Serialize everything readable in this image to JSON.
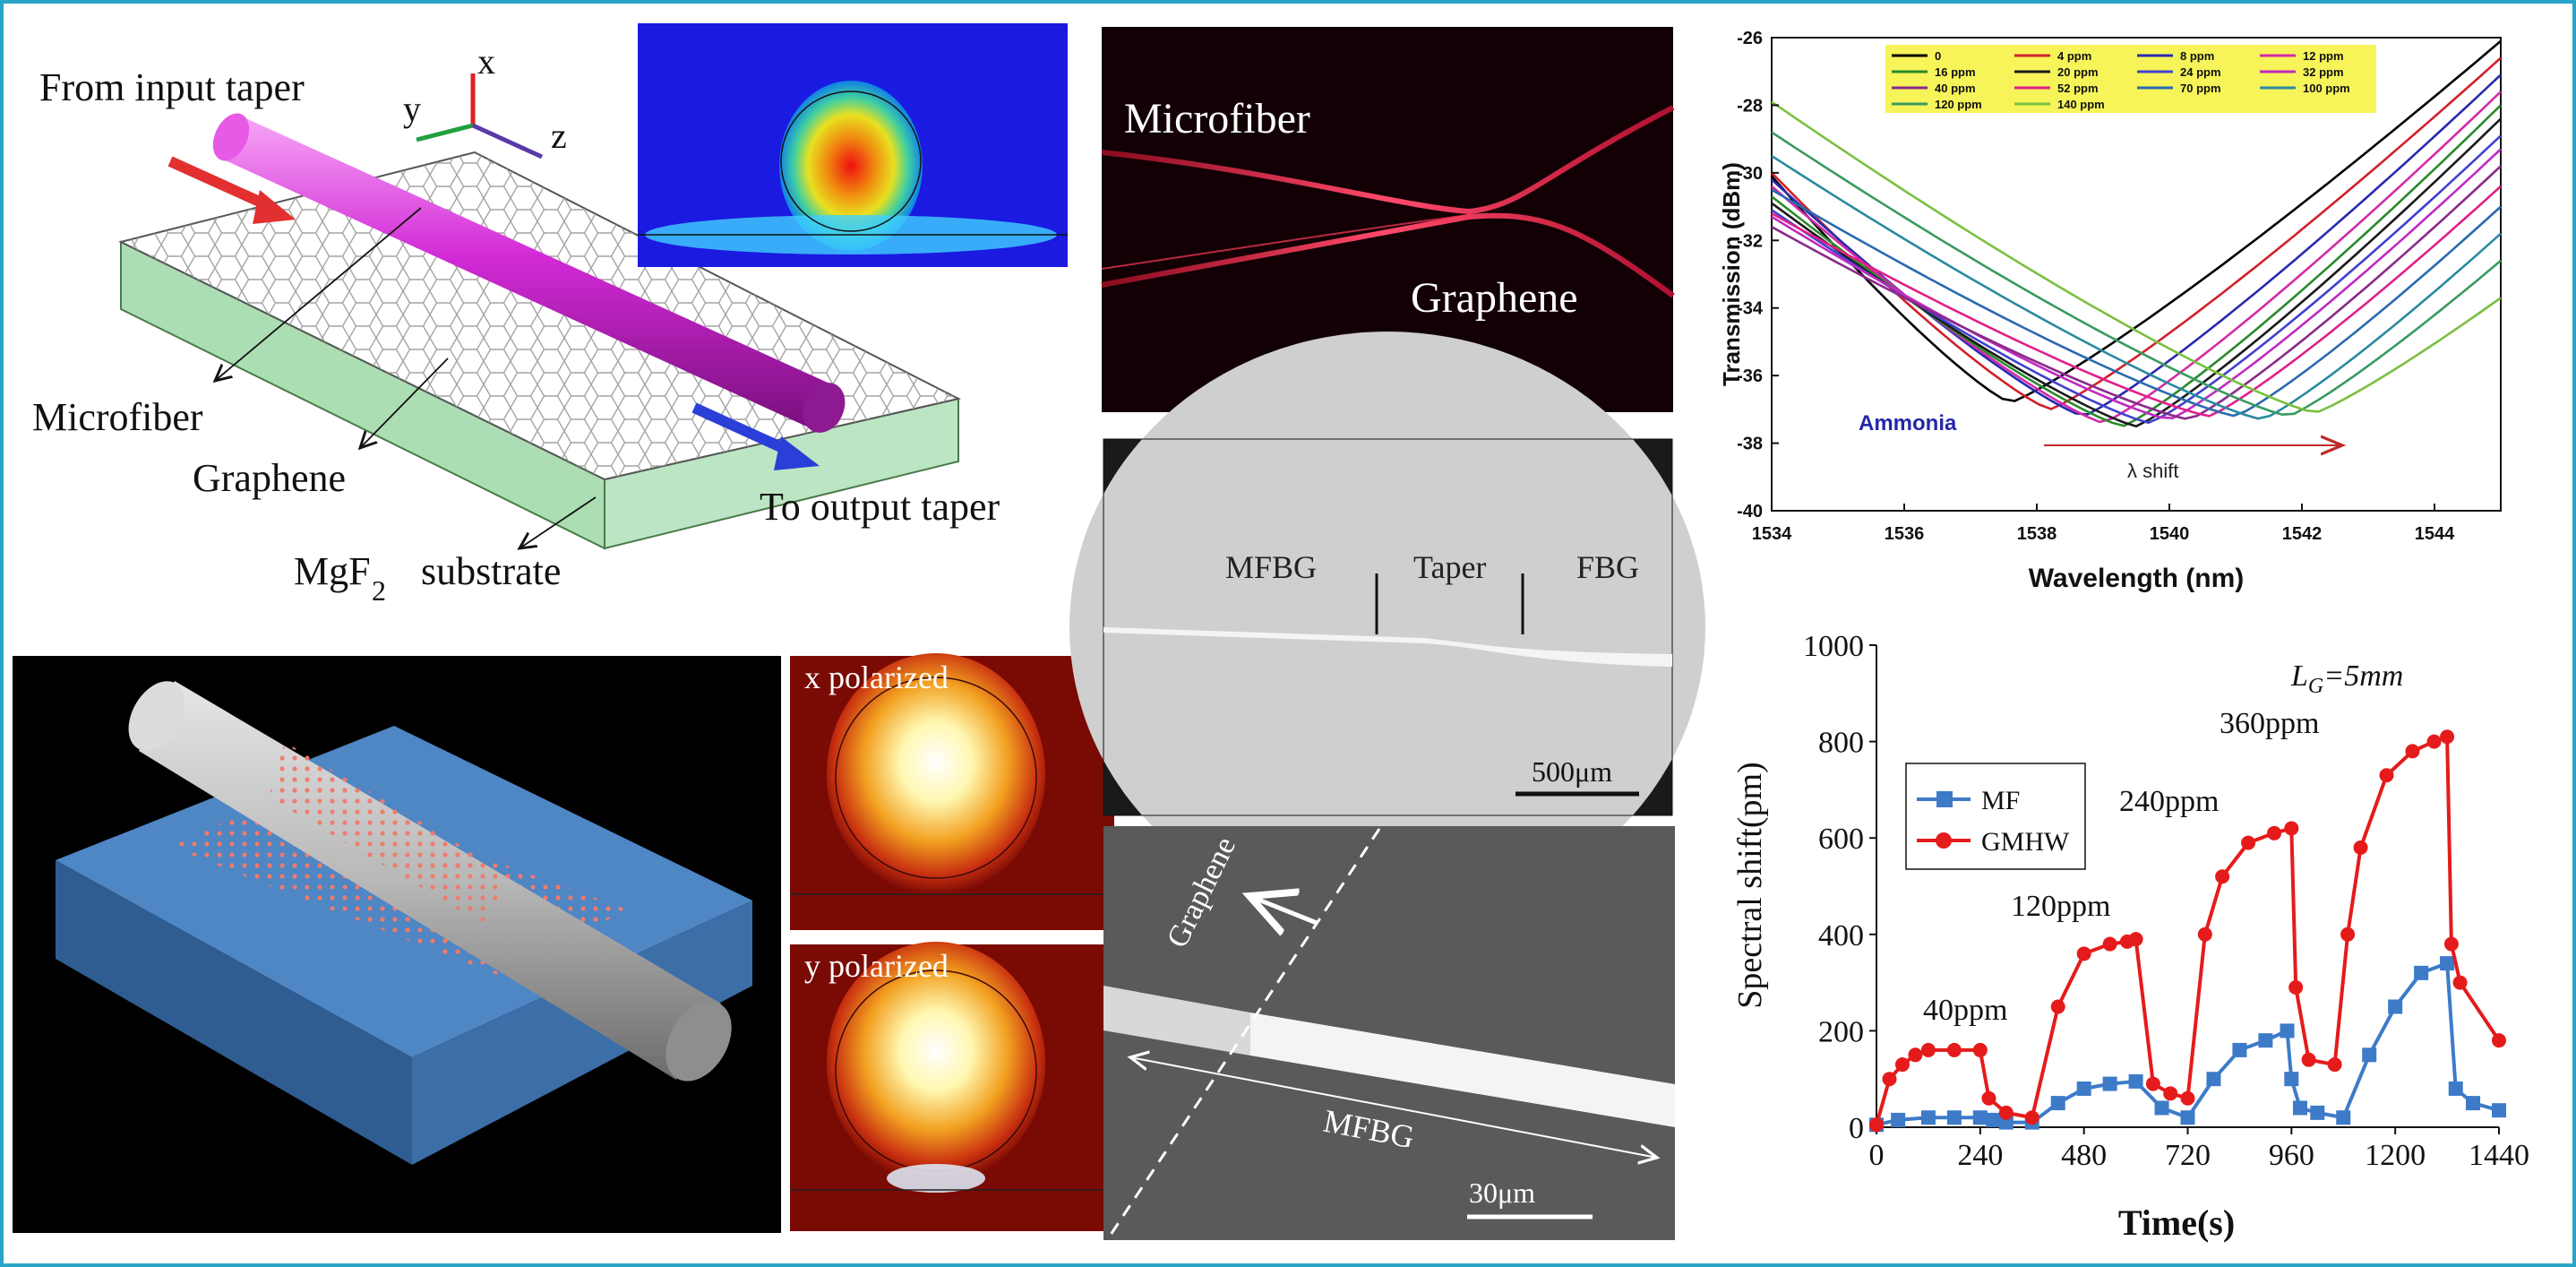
{
  "colors": {
    "frame": "#2aa5c9",
    "fiber": "#d22ad6",
    "substrate": "#8fd39a",
    "arrow_in": "#e23030",
    "arrow_out": "#2a3fd8",
    "red_series": "#e51b1b",
    "blue_series": "#3d7bc9",
    "ammonia_label": "#2626a8"
  },
  "panel_a": {
    "label_input": "From input taper",
    "label_microfiber": "Microfiber",
    "label_graphene": "Graphene",
    "label_substrate_mg": "MgF",
    "label_substrate_sub": "2",
    "label_substrate_word": "substrate",
    "label_output": "To output taper",
    "axis_x": "x",
    "axis_y": "y",
    "axis_z": "z"
  },
  "panel_b": {
    "label_x": "x polarized",
    "label_y": "y polarized"
  },
  "panel_c": {
    "label_microfiber": "Microfiber",
    "label_graphene": "Graphene"
  },
  "panel_d": {
    "label_mfbg": "MFBG",
    "label_taper": "Taper",
    "label_fbg": "FBG",
    "scale": "500μm"
  },
  "panel_e": {
    "label_graphene": "Graphene",
    "label_mfbg": "MFBG",
    "scale": "30μm"
  },
  "chart_data": [
    {
      "type": "line",
      "title": "",
      "xlabel": "Wavelength (nm)",
      "ylabel": "Transmission (dBm)",
      "xlim": [
        1534,
        1545
      ],
      "ylim": [
        -40,
        -26
      ],
      "xticks": [
        "1534",
        "1536",
        "1538",
        "1540",
        "1542",
        "1544"
      ],
      "yticks": [
        "-26",
        "-28",
        "-30",
        "-32",
        "-34",
        "-36",
        "-38",
        "-40"
      ],
      "annotation_species": "Ammonia",
      "annotation_shift": "λ  shift",
      "series": [
        {
          "name": "0",
          "color": "#000000",
          "min_x": 1537.6,
          "min_y": -36.8,
          "start_y": -30.1,
          "end_y": -26.1
        },
        {
          "name": "4 ppm",
          "color": "#d2202a",
          "min_x": 1538.2,
          "min_y": -37.0,
          "start_y": -30.0,
          "end_y": -26.6
        },
        {
          "name": "8 ppm",
          "color": "#2a2ab0",
          "min_x": 1538.7,
          "min_y": -37.2,
          "start_y": -30.2,
          "end_y": -27.1
        },
        {
          "name": "12 ppm",
          "color": "#d42aa6",
          "min_x": 1539.0,
          "min_y": -37.4,
          "start_y": -30.4,
          "end_y": -27.6
        },
        {
          "name": "16 ppm",
          "color": "#2a8a2a",
          "min_x": 1539.3,
          "min_y": -37.5,
          "start_y": -30.7,
          "end_y": -28.0
        },
        {
          "name": "20 ppm",
          "color": "#1a1a1a",
          "min_x": 1539.5,
          "min_y": -37.5,
          "start_y": -30.9,
          "end_y": -28.4
        },
        {
          "name": "24 ppm",
          "color": "#4040d0",
          "min_x": 1539.7,
          "min_y": -37.4,
          "start_y": -31.1,
          "end_y": -28.9
        },
        {
          "name": "32 ppm",
          "color": "#c02ac0",
          "min_x": 1540.0,
          "min_y": -37.3,
          "start_y": -31.3,
          "end_y": -29.3
        },
        {
          "name": "40 ppm",
          "color": "#8a2a8a",
          "min_x": 1540.3,
          "min_y": -37.3,
          "start_y": -31.6,
          "end_y": -29.8
        },
        {
          "name": "52 ppm",
          "color": "#e0208a",
          "min_x": 1540.6,
          "min_y": -37.2,
          "start_y": -31.2,
          "end_y": -30.4
        },
        {
          "name": "70 ppm",
          "color": "#2a6ab0",
          "min_x": 1541.0,
          "min_y": -37.2,
          "start_y": -30.5,
          "end_y": -31.0
        },
        {
          "name": "100 ppm",
          "color": "#2a8aa0",
          "min_x": 1541.4,
          "min_y": -37.3,
          "start_y": -29.5,
          "end_y": -31.8
        },
        {
          "name": "120 ppm",
          "color": "#3a9a60",
          "min_x": 1541.8,
          "min_y": -37.2,
          "start_y": -28.8,
          "end_y": -32.6
        },
        {
          "name": "140 ppm",
          "color": "#7ac040",
          "min_x": 1542.2,
          "min_y": -37.1,
          "start_y": -27.9,
          "end_y": -33.7
        }
      ]
    },
    {
      "type": "line",
      "title": "",
      "xlabel": "Time(s)",
      "ylabel": "Spectral shift(pm)",
      "xlim": [
        0,
        1440
      ],
      "ylim": [
        0,
        1000
      ],
      "xticks": [
        "0",
        "240",
        "480",
        "720",
        "960",
        "1200",
        "1440"
      ],
      "yticks": [
        "0",
        "200",
        "400",
        "600",
        "800",
        "1000"
      ],
      "annotations": [
        "40ppm",
        "120ppm",
        "240ppm",
        "360ppm"
      ],
      "annotation_length": "L",
      "annotation_length_sub": "G",
      "annotation_length_val": "=5mm",
      "series": [
        {
          "name": "MF",
          "color": "#3d7bc9",
          "marker": "square",
          "x": [
            0,
            50,
            120,
            180,
            240,
            270,
            300,
            360,
            420,
            480,
            540,
            600,
            660,
            720,
            780,
            840,
            900,
            950,
            960,
            980,
            1020,
            1080,
            1140,
            1200,
            1260,
            1320,
            1340,
            1380,
            1440
          ],
          "y": [
            5,
            15,
            20,
            20,
            20,
            15,
            10,
            10,
            50,
            80,
            90,
            95,
            40,
            20,
            100,
            160,
            180,
            200,
            100,
            40,
            30,
            20,
            150,
            250,
            320,
            340,
            80,
            50,
            35
          ]
        },
        {
          "name": "GMHW",
          "color": "#e51b1b",
          "marker": "circle",
          "x": [
            0,
            30,
            60,
            90,
            120,
            180,
            240,
            260,
            300,
            360,
            420,
            480,
            540,
            580,
            600,
            640,
            680,
            720,
            760,
            800,
            860,
            920,
            960,
            970,
            1000,
            1060,
            1090,
            1120,
            1180,
            1240,
            1290,
            1320,
            1330,
            1350,
            1440
          ],
          "y": [
            5,
            100,
            130,
            150,
            160,
            160,
            160,
            60,
            30,
            20,
            250,
            360,
            380,
            385,
            390,
            90,
            70,
            60,
            400,
            520,
            590,
            610,
            620,
            290,
            140,
            130,
            400,
            580,
            730,
            780,
            800,
            810,
            380,
            300,
            180
          ]
        }
      ]
    }
  ]
}
